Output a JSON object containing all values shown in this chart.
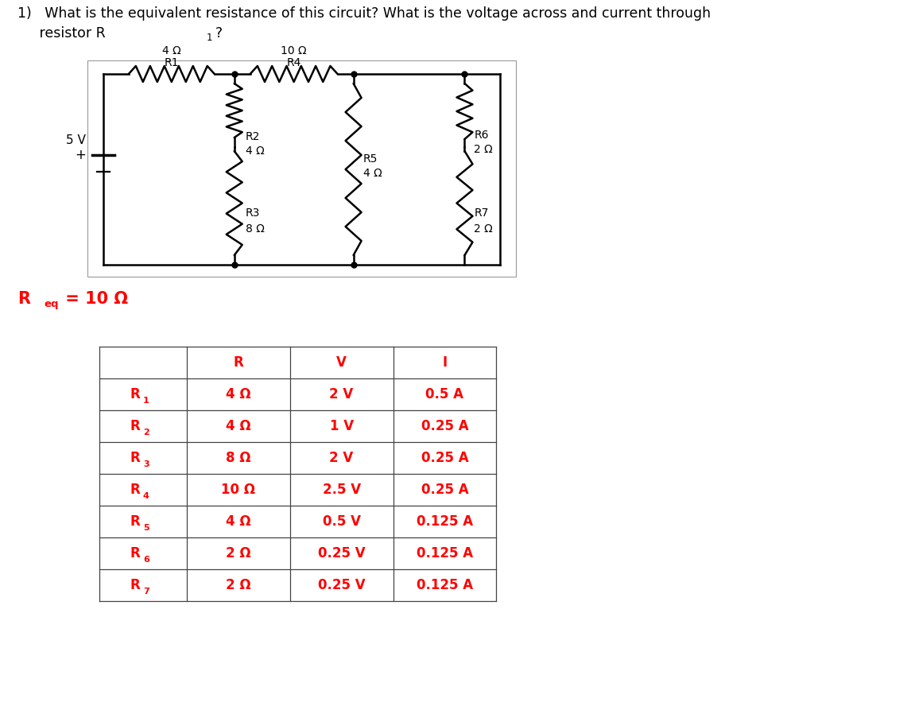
{
  "title_line1": "1)   What is the equivalent resistance of this circuit? What is the voltage across and current through",
  "title_line2_prefix": "     resistor R",
  "title_line2_sub": "1",
  "title_line2_end": "?",
  "req_R": "R",
  "req_sub": "eq",
  "req_val": " = 10 Ω",
  "table_headers": [
    "",
    "R",
    "V",
    "I"
  ],
  "table_rows": [
    [
      "R_1",
      "4 Ω",
      "2 V",
      "0.5 A"
    ],
    [
      "R_2",
      "4 Ω",
      "1 V",
      "0.25 A"
    ],
    [
      "R_3",
      "8 Ω",
      "2 V",
      "0.25 A"
    ],
    [
      "R_4",
      "10 Ω",
      "2.5 V",
      "0.25 A"
    ],
    [
      "R_5",
      "4 Ω",
      "0.5 V",
      "0.125 A"
    ],
    [
      "R_6",
      "2 Ω",
      "0.25 V",
      "0.125 A"
    ],
    [
      "R_7",
      "2 Ω",
      "0.25 V",
      "0.125 A"
    ]
  ],
  "circuit_color": "#000000",
  "table_text_color": "#ff0000",
  "bg_color": "#ffffff",
  "font_size_title": 12.5,
  "font_size_table": 12,
  "font_size_req": 15
}
